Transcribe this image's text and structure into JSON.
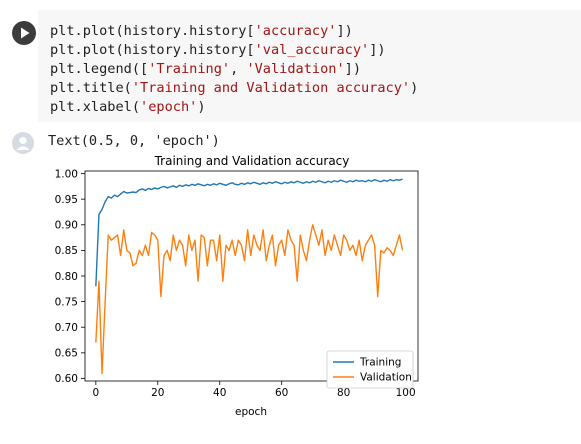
{
  "code_cell": {
    "lines": [
      [
        {
          "t": "plt.plot(history.history["
        },
        {
          "t": "'accuracy'",
          "s": 1
        },
        {
          "t": "])"
        }
      ],
      [
        {
          "t": "plt.plot(history.history["
        },
        {
          "t": "'val_accuracy'",
          "s": 1
        },
        {
          "t": "])"
        }
      ],
      [
        {
          "t": "plt.legend(["
        },
        {
          "t": "'Training'",
          "s": 1
        },
        {
          "t": ", "
        },
        {
          "t": "'Validation'",
          "s": 1
        },
        {
          "t": "])"
        }
      ],
      [
        {
          "t": "plt.title("
        },
        {
          "t": "'Training and Validation accuracy'",
          "s": 1
        },
        {
          "t": ")"
        }
      ],
      [
        {
          "t": "plt.xlabel("
        },
        {
          "t": "'epoch'",
          "s": 1
        },
        {
          "t": ")"
        }
      ]
    ]
  },
  "output": {
    "text": "Text(0.5, 0, 'epoch')"
  },
  "colors": {
    "training": "#1f77b4",
    "validation": "#ff7f0e"
  },
  "chart_data": {
    "type": "line",
    "title": "Training and Validation accuracy",
    "xlabel": "epoch",
    "ylabel": "",
    "xlim": [
      -3.5,
      104
    ],
    "ylim": [
      0.595,
      1.005
    ],
    "x_ticks": [
      0,
      20,
      40,
      60,
      80,
      100
    ],
    "y_ticks": [
      0.6,
      0.65,
      0.7,
      0.75,
      0.8,
      0.85,
      0.9,
      0.95,
      1.0
    ],
    "y_tick_labels": [
      "0.60",
      "0.65",
      "0.70",
      "0.75",
      "0.80",
      "0.85",
      "0.90",
      "0.95",
      "1.00"
    ],
    "legend": {
      "position": "lower-right",
      "entries": [
        "Training",
        "Validation"
      ]
    },
    "series": [
      {
        "name": "Training",
        "values": [
          0.78,
          0.92,
          0.93,
          0.945,
          0.955,
          0.952,
          0.958,
          0.955,
          0.96,
          0.965,
          0.962,
          0.963,
          0.964,
          0.963,
          0.968,
          0.97,
          0.967,
          0.971,
          0.969,
          0.972,
          0.97,
          0.973,
          0.975,
          0.972,
          0.974,
          0.976,
          0.973,
          0.977,
          0.975,
          0.978,
          0.976,
          0.979,
          0.977,
          0.98,
          0.978,
          0.976,
          0.979,
          0.977,
          0.98,
          0.978,
          0.981,
          0.979,
          0.977,
          0.98,
          0.982,
          0.979,
          0.978,
          0.981,
          0.979,
          0.982,
          0.98,
          0.983,
          0.981,
          0.979,
          0.982,
          0.98,
          0.983,
          0.981,
          0.984,
          0.982,
          0.98,
          0.983,
          0.981,
          0.984,
          0.982,
          0.985,
          0.983,
          0.981,
          0.984,
          0.982,
          0.985,
          0.983,
          0.986,
          0.984,
          0.982,
          0.985,
          0.983,
          0.986,
          0.984,
          0.987,
          0.985,
          0.983,
          0.986,
          0.984,
          0.987,
          0.985,
          0.986,
          0.984,
          0.987,
          0.985,
          0.988,
          0.986,
          0.984,
          0.987,
          0.985,
          0.988,
          0.986,
          0.988,
          0.987,
          0.989
        ]
      },
      {
        "name": "Validation",
        "values": [
          0.67,
          0.79,
          0.61,
          0.75,
          0.88,
          0.87,
          0.875,
          0.88,
          0.84,
          0.89,
          0.85,
          0.845,
          0.82,
          0.825,
          0.85,
          0.84,
          0.86,
          0.84,
          0.885,
          0.88,
          0.87,
          0.76,
          0.84,
          0.85,
          0.83,
          0.88,
          0.85,
          0.87,
          0.86,
          0.82,
          0.88,
          0.85,
          0.87,
          0.79,
          0.88,
          0.875,
          0.82,
          0.87,
          0.87,
          0.83,
          0.88,
          0.79,
          0.86,
          0.85,
          0.87,
          0.84,
          0.87,
          0.86,
          0.83,
          0.89,
          0.84,
          0.88,
          0.86,
          0.85,
          0.89,
          0.83,
          0.86,
          0.88,
          0.82,
          0.86,
          0.87,
          0.84,
          0.89,
          0.87,
          0.86,
          0.79,
          0.88,
          0.85,
          0.83,
          0.87,
          0.9,
          0.88,
          0.86,
          0.89,
          0.84,
          0.87,
          0.85,
          0.88,
          0.86,
          0.84,
          0.88,
          0.87,
          0.85,
          0.86,
          0.84,
          0.87,
          0.83,
          0.86,
          0.87,
          0.88,
          0.86,
          0.76,
          0.85,
          0.845,
          0.855,
          0.85,
          0.84,
          0.86,
          0.88,
          0.85
        ]
      }
    ]
  }
}
